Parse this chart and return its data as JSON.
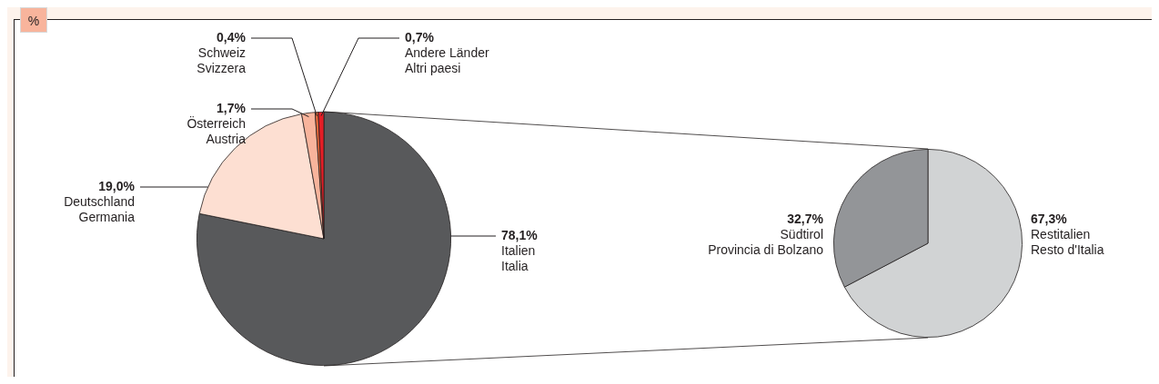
{
  "chart_data": [
    {
      "type": "pie",
      "annotations": [
        "%"
      ],
      "categories": [
        "Italien\nItalia",
        "Deutschland\nGermania",
        "Österreich\nAustria",
        "Schweiz\nSvizzera",
        "Andere Länder\nAltri paesi"
      ],
      "values": [
        78.1,
        19.0,
        1.7,
        0.4,
        0.7
      ],
      "colors": [
        "#58595b",
        "#fddfd2",
        "#f8b49c",
        "#f26b3a",
        "#e41e26"
      ],
      "value_labels": [
        "78,1%",
        "19,0%",
        "1,7%",
        "0,4%",
        "0,7%"
      ]
    },
    {
      "type": "pie",
      "categories": [
        "Restitalien\nResto d'Italia",
        "Südtirol\nProvincia di Bolzano"
      ],
      "values": [
        67.3,
        32.7
      ],
      "colors": [
        "#d1d3d4",
        "#939598"
      ],
      "value_labels": [
        "67,3%",
        "32,7%"
      ]
    }
  ]
}
